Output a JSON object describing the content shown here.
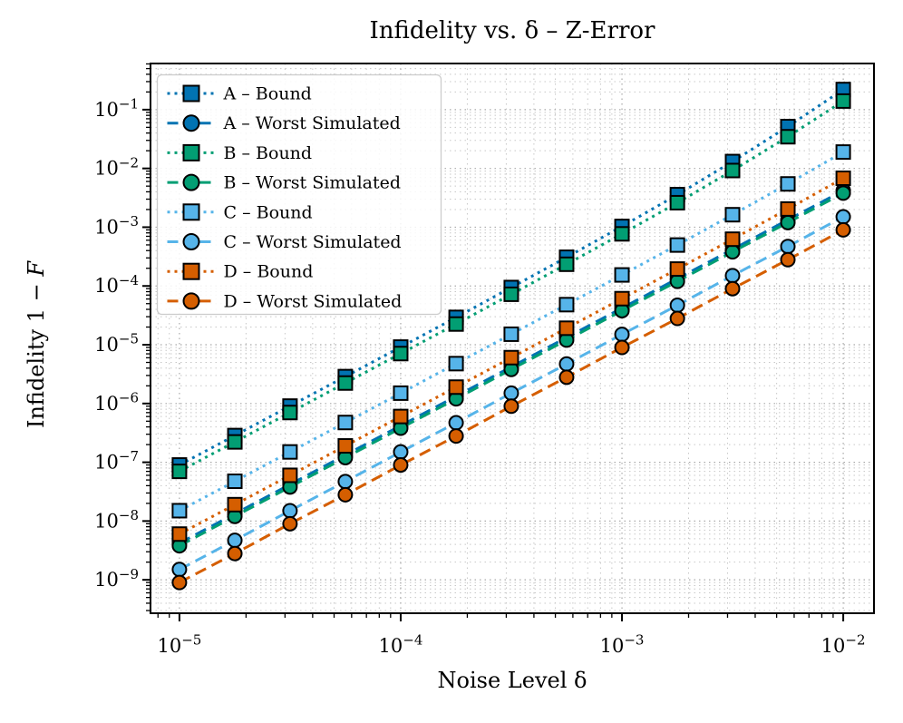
{
  "figure": {
    "background": "#ffffff"
  },
  "chart_data": {
    "type": "line",
    "title": "Infidelity vs. δ – Z-Error",
    "xlabel": "Noise Level δ",
    "ylabel_text": "Infidelity 1 − ",
    "ylabel_math": "F",
    "x_scale": "log",
    "y_scale": "log",
    "xlim": [
      7.4e-06,
      0.01377
    ],
    "ylim": [
      2.7e-10,
      0.61
    ],
    "x_tick_exponents": [
      -5,
      -4,
      -3,
      -2
    ],
    "y_tick_exponents": [
      -1,
      -2,
      -3,
      -4,
      -5,
      -6,
      -7,
      -8,
      -9
    ],
    "grid": {
      "major": true,
      "minor": true,
      "style": "dotted",
      "major_color": "#a9a9a9",
      "minor_color": "#c8c8c8"
    },
    "legend_position": "upper-left",
    "axis_color": "#000000",
    "x": [
      1e-05,
      1.78e-05,
      3.16e-05,
      5.62e-05,
      0.0001,
      0.000178,
      0.000316,
      0.000562,
      0.001,
      0.00178,
      0.00316,
      0.00562,
      0.01
    ],
    "series": [
      {
        "id": "a-bound",
        "name": "A – Bound",
        "color": "#0173b2",
        "marker": "square",
        "line": "dotted",
        "values": [
          9e-08,
          2.85e-07,
          9.04e-07,
          2.87e-06,
          9.13e-06,
          2.92e-05,
          9.41e-05,
          0.000308,
          0.00103,
          0.00358,
          0.0131,
          0.0516,
          0.22
        ]
      },
      {
        "id": "a-worst",
        "name": "A – Worst Simulated",
        "color": "#0173b2",
        "marker": "circle",
        "line": "dashed",
        "values": [
          4.2e-09,
          1.33e-08,
          4.2e-08,
          1.33e-07,
          4.2e-07,
          1.33e-06,
          4.2e-06,
          1.33e-05,
          4.2e-05,
          0.000133,
          0.00042,
          0.00133,
          0.0042
        ]
      },
      {
        "id": "b-bound",
        "name": "B – Bound",
        "color": "#029e73",
        "marker": "square",
        "line": "dotted",
        "values": [
          7e-08,
          2.22e-07,
          7.02e-07,
          2.23e-06,
          7.07e-06,
          2.25e-05,
          7.22e-05,
          0.000234,
          0.00077,
          0.00261,
          0.00921,
          0.0346,
          0.14
        ]
      },
      {
        "id": "b-worst",
        "name": "B – Worst Simulated",
        "color": "#029e73",
        "marker": "circle",
        "line": "dashed",
        "values": [
          3.8e-09,
          1.2e-08,
          3.8e-08,
          1.2e-07,
          3.8e-07,
          1.2e-06,
          3.8e-06,
          1.2e-05,
          3.8e-05,
          0.00012,
          0.00038,
          0.0012,
          0.0038
        ]
      },
      {
        "id": "c-bound",
        "name": "C – Bound",
        "color": "#56b4e9",
        "marker": "square",
        "line": "dotted",
        "values": [
          1.5e-08,
          4.75e-08,
          1.5e-07,
          4.75e-07,
          1.5e-06,
          4.77e-06,
          1.51e-05,
          4.81e-05,
          0.000154,
          0.000497,
          0.00163,
          0.00545,
          0.019
        ]
      },
      {
        "id": "c-worst",
        "name": "C – Worst Simulated",
        "color": "#56b4e9",
        "marker": "circle",
        "line": "dashed",
        "values": [
          1.5e-09,
          4.7e-09,
          1.5e-08,
          4.7e-08,
          1.5e-07,
          4.7e-07,
          1.5e-06,
          4.7e-06,
          1.5e-05,
          4.7e-05,
          0.00015,
          0.00047,
          0.0015
        ]
      },
      {
        "id": "d-bound",
        "name": "D – Bound",
        "color": "#d55e00",
        "marker": "square",
        "line": "dotted",
        "values": [
          6e-09,
          1.9e-08,
          6e-08,
          1.9e-07,
          6.01e-07,
          1.9e-06,
          6.03e-06,
          1.91e-05,
          6.08e-05,
          0.000194,
          0.000625,
          0.00204,
          0.0068
        ]
      },
      {
        "id": "d-worst",
        "name": "D – Worst Simulated",
        "color": "#d55e00",
        "marker": "circle",
        "line": "dashed",
        "values": [
          9e-10,
          2.8e-09,
          9e-09,
          2.8e-08,
          9e-08,
          2.8e-07,
          9e-07,
          2.8e-06,
          9e-06,
          2.8e-05,
          9e-05,
          0.00028,
          0.0009
        ]
      }
    ]
  }
}
